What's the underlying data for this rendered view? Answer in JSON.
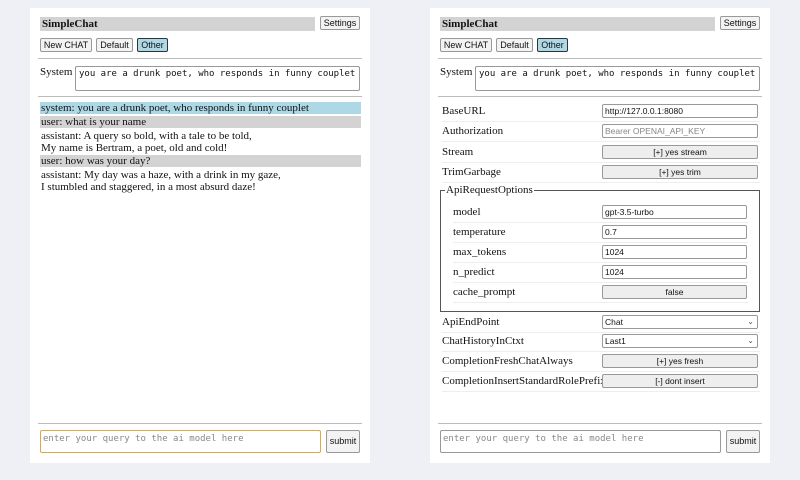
{
  "app_title": "SimpleChat",
  "settings_label": "Settings",
  "buttons": {
    "new_chat": "New CHAT",
    "default": "Default",
    "other": "Other"
  },
  "system": {
    "label": "System",
    "value": "you are a drunk poet, who responds in funny couplet"
  },
  "messages": [
    {
      "role": "system",
      "text": "system: you are a drunk poet, who responds in funny couplet"
    },
    {
      "role": "user",
      "text": "user: what is your name"
    },
    {
      "role": "assistant",
      "lines": [
        "assistant: A query so bold, with a tale to be told,",
        "My name is Bertram, a poet, old and cold!"
      ]
    },
    {
      "role": "user",
      "text": "user: how was your day?"
    },
    {
      "role": "assistant",
      "lines": [
        "assistant: My day was a haze, with a drink in my gaze,",
        "I stumbled and staggered, in a most absurd daze!"
      ]
    }
  ],
  "query": {
    "placeholder": "enter your query to the ai model here",
    "submit": "submit"
  },
  "settings": {
    "base_url": {
      "label": "BaseURL",
      "value": "http://127.0.0.1:8080"
    },
    "authorization": {
      "label": "Authorization",
      "placeholder": "Bearer OPENAI_API_KEY"
    },
    "stream": {
      "label": "Stream",
      "value": "[+] yes stream"
    },
    "trim": {
      "label": "TrimGarbage",
      "value": "[+] yes trim"
    },
    "api_options": {
      "legend": "ApiRequestOptions",
      "model": {
        "label": "model",
        "value": "gpt-3.5-turbo"
      },
      "temperature": {
        "label": "temperature",
        "value": "0.7"
      },
      "max_tokens": {
        "label": "max_tokens",
        "value": "1024"
      },
      "n_predict": {
        "label": "n_predict",
        "value": "1024"
      },
      "cache_prompt": {
        "label": "cache_prompt",
        "value": "false"
      }
    },
    "endpoint": {
      "label": "ApiEndPoint",
      "value": "Chat"
    },
    "history": {
      "label": "ChatHistoryInCtxt",
      "value": "Last1"
    },
    "fresh": {
      "label": "CompletionFreshChatAlways",
      "value": "[+] yes fresh"
    },
    "prefix": {
      "label": "CompletionInsertStandardRolePrefix",
      "value": "[-] dont insert"
    }
  }
}
